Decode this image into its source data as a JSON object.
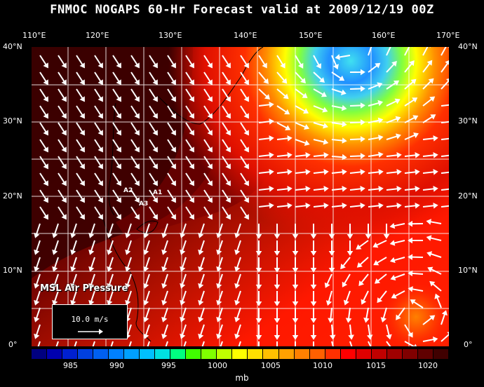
{
  "title": "FNMOC NOGAPS 60-Hr Forecast valid at 2009/12/19 00Z",
  "lon_labels": [
    "110°E",
    "120°E",
    "130°E",
    "140°E",
    "150°E",
    "160°E",
    "170°E"
  ],
  "lat_labels": [
    "40°N",
    "30°N",
    "20°N",
    "10°N",
    "0°"
  ],
  "field_label": "MSL Air Pressure",
  "scale_label": "10.0 m/s",
  "stations": [
    "A2",
    "A1",
    "A3"
  ],
  "colorbar": {
    "unit": "mb",
    "tick_labels": [
      "985",
      "990",
      "995",
      "1000",
      "1005",
      "1010",
      "1015",
      "1020"
    ],
    "colors": [
      "#000080",
      "#0000b0",
      "#0020d0",
      "#0040e0",
      "#0060f0",
      "#0080ff",
      "#00a0ff",
      "#00c0ff",
      "#00e0e0",
      "#00ff80",
      "#40ff00",
      "#80ff00",
      "#c0ff00",
      "#ffff00",
      "#ffe000",
      "#ffc000",
      "#ffa000",
      "#ff8000",
      "#ff6000",
      "#ff3000",
      "#ff0000",
      "#e00000",
      "#c00000",
      "#a00000",
      "#800000",
      "#600000",
      "#400000"
    ]
  },
  "colors": {
    "background": "#000000",
    "high_pressure": "#4a0000",
    "mid_pressure": "#c01000",
    "low_pressure_sea": "#ff2000",
    "cyclone_core": "#40d8f0"
  }
}
